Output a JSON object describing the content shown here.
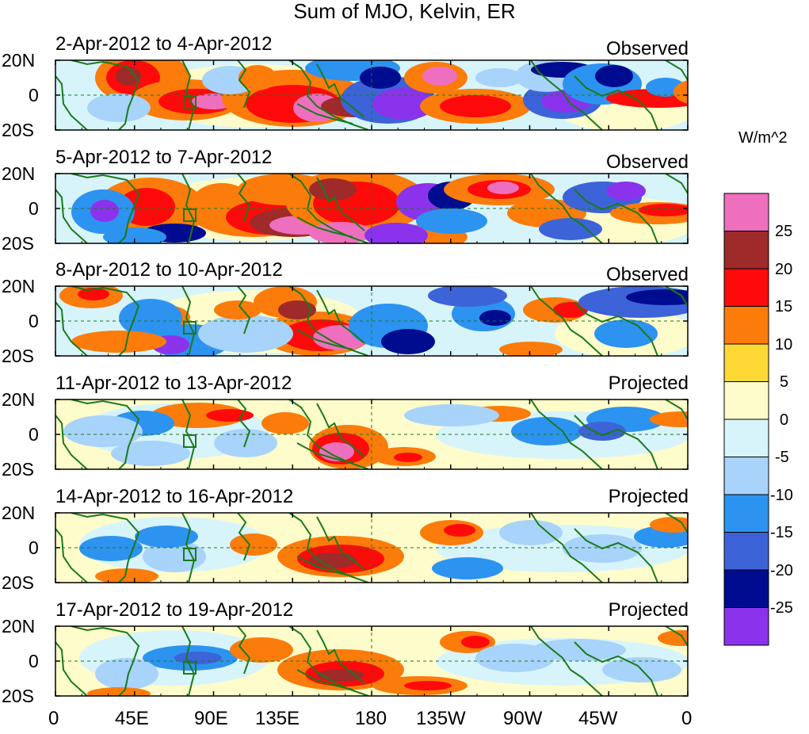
{
  "figure": {
    "title": "Sum of MJO, Kelvin, ER",
    "x_ticks": [
      "0",
      "45E",
      "90E",
      "135E",
      "180",
      "135W",
      "90W",
      "45W",
      "0"
    ],
    "y_ticks": [
      "20N",
      "0",
      "20S"
    ]
  },
  "panels": [
    {
      "title": "2-Apr-2012 to 4-Apr-2012",
      "tag": "Observed"
    },
    {
      "title": "5-Apr-2012 to 7-Apr-2012",
      "tag": "Observed"
    },
    {
      "title": "8-Apr-2012 to 10-Apr-2012",
      "tag": "Observed"
    },
    {
      "title": "11-Apr-2012 to 13-Apr-2012",
      "tag": "Projected"
    },
    {
      "title": "14-Apr-2012 to 16-Apr-2012",
      "tag": "Projected"
    },
    {
      "title": "17-Apr-2012 to 19-Apr-2012",
      "tag": "Projected"
    }
  ],
  "colorbar": {
    "units": "W/m^2",
    "labels": [
      "25",
      "20",
      "15",
      "10",
      "5",
      "0",
      "-5",
      "-10",
      "-15",
      "-20",
      "-25"
    ],
    "colors": [
      "#ee6fbd",
      "#9e2a2a",
      "#ff0a0a",
      "#fb7c0a",
      "#fed835",
      "#fffccb",
      "#d8f4fb",
      "#a8d3fa",
      "#2d93f0",
      "#3d63d9",
      "#000c8f",
      "#8b33ec"
    ]
  },
  "theme": {
    "coastline": "#1a7a1a",
    "frame": "#000000"
  }
}
